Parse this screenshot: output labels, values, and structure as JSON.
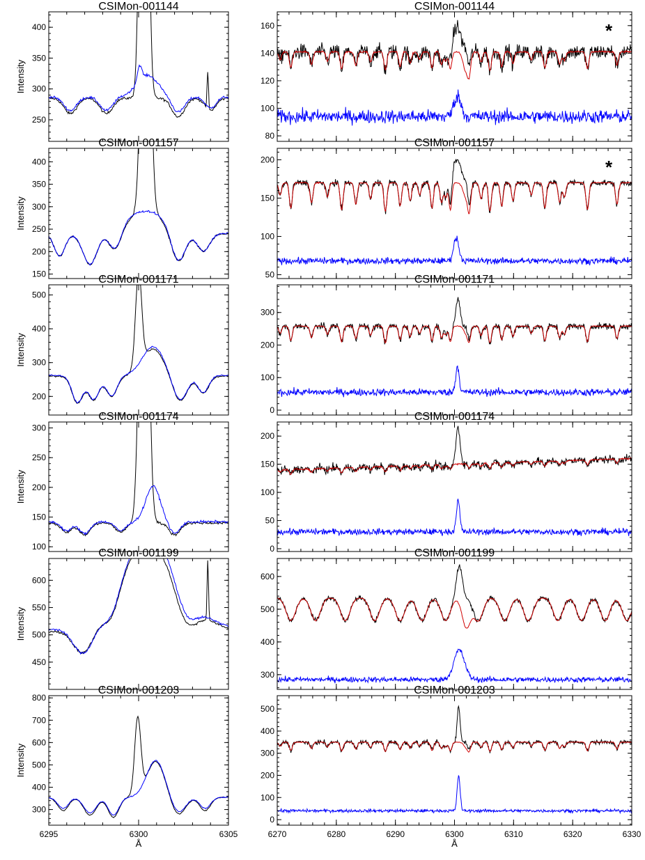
{
  "chart_data": [
    {
      "type": "line",
      "title": "CSIMon-001144",
      "ylabel": "Intensity",
      "xlabel": "",
      "xlim": [
        6295,
        6305
      ],
      "ylim": [
        215,
        425
      ],
      "yticks": [
        250,
        300,
        350,
        400
      ],
      "xticks": [
        6295,
        6300,
        6305
      ],
      "xtick_labels": [
        "",
        "",
        ""
      ],
      "series": [
        {
          "color": "#000000",
          "peaks": [
            [
              6300.3,
              0.19,
              1000
            ],
            [
              6303.85,
              0.04,
              60
            ]
          ],
          "continuum": 285,
          "dips": [
            [
              6296.2,
              0.35,
              25
            ],
            [
              6298.2,
              0.35,
              25
            ],
            [
              6302.2,
              0.35,
              30
            ],
            [
              6304.0,
              0.3,
              20
            ]
          ]
        },
        {
          "color": "#0000ff",
          "peaks": [
            [
              6300.5,
              0.6,
              35
            ],
            [
              6300.05,
              0.12,
              25
            ]
          ],
          "continuum": 287,
          "dips": [
            [
              6296.2,
              0.35,
              22
            ],
            [
              6298.2,
              0.35,
              22
            ],
            [
              6302.2,
              0.35,
              25
            ],
            [
              6304.0,
              0.3,
              18
            ]
          ]
        }
      ]
    },
    {
      "type": "line",
      "title": "CSIMon-001144",
      "ylabel": "",
      "xlabel": "",
      "xlim": [
        6270,
        6330
      ],
      "ylim": [
        76,
        170
      ],
      "yticks": [
        80,
        100,
        120,
        140,
        160
      ],
      "xticks": [
        6270,
        6280,
        6290,
        6300,
        6310,
        6320,
        6330
      ],
      "xtick_labels": [
        "",
        "",
        "",
        "",
        "",
        "",
        ""
      ],
      "marker": "*",
      "series": [
        {
          "color": "#000000",
          "continuum": 141,
          "peaks": [
            [
              6300.4,
              0.7,
              18
            ]
          ],
          "dips": "telluric",
          "depth": 14,
          "noise": 4
        },
        {
          "color": "#d00000",
          "continuum": 141,
          "peaks": [],
          "dips": "telluric",
          "depth": 14,
          "noise": 0.5,
          "extra_dip": [
            6302.0,
            0.5,
            15
          ]
        },
        {
          "color": "#0000ff",
          "continuum": 94,
          "peaks": [
            [
              6300.5,
              0.6,
              15
            ]
          ],
          "dips": "none",
          "depth": 0,
          "noise": 3.5
        }
      ]
    },
    {
      "type": "line",
      "title": "CSIMon-001157",
      "ylabel": "Intensity",
      "xlabel": "",
      "xlim": [
        6295,
        6305
      ],
      "ylim": [
        140,
        430
      ],
      "yticks": [
        150,
        200,
        250,
        300,
        350,
        400
      ],
      "xticks": [
        6295,
        6300,
        6305
      ],
      "xtick_labels": [
        "",
        "",
        ""
      ],
      "series": [
        {
          "color": "#000000",
          "peaks": [
            [
              6300.4,
              0.22,
              900
            ],
            [
              6300.4,
              1.2,
              45
            ]
          ],
          "continuum": 240,
          "dips": [
            [
              6295.6,
              0.3,
              50
            ],
            [
              6297.3,
              0.4,
              70
            ],
            [
              6298.7,
              0.35,
              50
            ],
            [
              6302.2,
              0.4,
              75
            ],
            [
              6303.6,
              0.35,
              40
            ]
          ]
        },
        {
          "color": "#0000ff",
          "peaks": [
            [
              6300.4,
              1.2,
              50
            ]
          ],
          "continuum": 240,
          "dips": [
            [
              6295.6,
              0.3,
              50
            ],
            [
              6297.3,
              0.4,
              70
            ],
            [
              6298.7,
              0.35,
              50
            ],
            [
              6302.2,
              0.4,
              75
            ],
            [
              6303.6,
              0.35,
              40
            ]
          ]
        }
      ]
    },
    {
      "type": "line",
      "title": "CSIMon-001157",
      "ylabel": "",
      "xlabel": "",
      "xlim": [
        6270,
        6330
      ],
      "ylim": [
        45,
        215
      ],
      "yticks": [
        50,
        100,
        150,
        200
      ],
      "xticks": [
        6270,
        6280,
        6290,
        6300,
        6310,
        6320,
        6330
      ],
      "xtick_labels": [
        "",
        "",
        "",
        "",
        "",
        "",
        ""
      ],
      "marker": "*",
      "series": [
        {
          "color": "#000000",
          "continuum": 170,
          "peaks": [
            [
              6300.4,
              0.7,
              30
            ]
          ],
          "dips": "telluric",
          "depth": 40,
          "noise": 3
        },
        {
          "color": "#d00000",
          "continuum": 170,
          "peaks": [],
          "dips": "telluric",
          "depth": 40,
          "noise": 0.5,
          "extra_dip": [
            6302.0,
            0.5,
            20
          ]
        },
        {
          "color": "#0000ff",
          "continuum": 68,
          "peaks": [
            [
              6300.3,
              0.45,
              30
            ]
          ],
          "dips": "none",
          "depth": 0,
          "noise": 3
        }
      ]
    },
    {
      "type": "line",
      "title": "CSIMon-001171",
      "ylabel": "Intensity",
      "xlabel": "",
      "xlim": [
        6295,
        6305
      ],
      "ylim": [
        145,
        530
      ],
      "yticks": [
        200,
        300,
        400,
        500
      ],
      "xticks": [
        6295,
        6300,
        6305
      ],
      "xtick_labels": [
        "",
        "",
        ""
      ],
      "series": [
        {
          "color": "#000000",
          "peaks": [
            [
              6300.0,
              0.17,
              280
            ],
            [
              6300.8,
              0.6,
              80
            ]
          ],
          "continuum": 260,
          "dips": [
            [
              6296.6,
              0.3,
              80
            ],
            [
              6297.5,
              0.3,
              70
            ],
            [
              6298.5,
              0.3,
              60
            ],
            [
              6302.3,
              0.4,
              75
            ],
            [
              6303.6,
              0.3,
              50
            ]
          ]
        },
        {
          "color": "#0000ff",
          "peaks": [
            [
              6300.8,
              0.6,
              85
            ]
          ],
          "continuum": 262,
          "dips": [
            [
              6296.6,
              0.3,
              80
            ],
            [
              6297.5,
              0.3,
              70
            ],
            [
              6298.5,
              0.3,
              60
            ],
            [
              6302.3,
              0.4,
              75
            ],
            [
              6303.6,
              0.3,
              50
            ]
          ]
        }
      ]
    },
    {
      "type": "line",
      "title": "CSIMon-001171",
      "ylabel": "",
      "xlabel": "",
      "xlim": [
        6270,
        6330
      ],
      "ylim": [
        -15,
        385
      ],
      "yticks": [
        0,
        100,
        200,
        300
      ],
      "xticks": [
        6270,
        6280,
        6290,
        6300,
        6310,
        6320,
        6330
      ],
      "xtick_labels": [
        "",
        "",
        "",
        "",
        "",
        "",
        ""
      ],
      "series": [
        {
          "color": "#000000",
          "continuum": 258,
          "peaks": [
            [
              6300.6,
              0.35,
              85
            ]
          ],
          "dips": "telluric",
          "depth": 55,
          "noise": 7
        },
        {
          "color": "#d00000",
          "continuum": 258,
          "peaks": [],
          "dips": "telluric",
          "depth": 55,
          "noise": 1,
          "extra_dip": [
            6302.0,
            0.4,
            25
          ]
        },
        {
          "color": "#0000ff",
          "continuum": 55,
          "peaks": [
            [
              6300.5,
              0.3,
              80
            ]
          ],
          "dips": "none",
          "depth": 0,
          "noise": 8
        }
      ]
    },
    {
      "type": "line",
      "title": "CSIMon-001174",
      "ylabel": "Intensity",
      "xlabel": "",
      "xlim": [
        6295,
        6305
      ],
      "ylim": [
        92,
        310
      ],
      "yticks": [
        100,
        150,
        200,
        250,
        300
      ],
      "xticks": [
        6295,
        6300,
        6305
      ],
      "xtick_labels": [
        "",
        "",
        ""
      ],
      "series": [
        {
          "color": "#000000",
          "peaks": [
            [
              6300.3,
              0.22,
              800
            ]
          ],
          "continuum": 140,
          "dips": [
            [
              6296.0,
              0.3,
              15
            ],
            [
              6297.0,
              0.3,
              20
            ],
            [
              6299.0,
              0.3,
              15
            ],
            [
              6302.0,
              0.3,
              20
            ]
          ]
        },
        {
          "color": "#0000ff",
          "peaks": [
            [
              6300.8,
              0.4,
              60
            ]
          ],
          "continuum": 142,
          "dips": [
            [
              6296.0,
              0.3,
              15
            ],
            [
              6297.0,
              0.3,
              20
            ],
            [
              6299.0,
              0.3,
              15
            ],
            [
              6302.0,
              0.3,
              20
            ]
          ]
        }
      ]
    },
    {
      "type": "line",
      "title": "CSIMon-001174",
      "ylabel": "",
      "xlabel": "",
      "xlim": [
        6270,
        6330
      ],
      "ylim": [
        -5,
        225
      ],
      "yticks": [
        0,
        50,
        100,
        150,
        200
      ],
      "xticks": [
        6270,
        6280,
        6290,
        6300,
        6310,
        6320,
        6330
      ],
      "xtick_labels": [
        "",
        "",
        "",
        "",
        "",
        "",
        ""
      ],
      "series": [
        {
          "color": "#000000",
          "continuum": 140,
          "peaks": [
            [
              6300.6,
              0.35,
              65
            ]
          ],
          "dips": "telluric",
          "depth": 10,
          "noise": 5,
          "trend": 20
        },
        {
          "color": "#d00000",
          "continuum": 140,
          "peaks": [],
          "dips": "telluric",
          "depth": 10,
          "noise": 1,
          "trend": 20
        },
        {
          "color": "#0000ff",
          "continuum": 30,
          "peaks": [
            [
              6300.6,
              0.3,
              55
            ]
          ],
          "dips": "none",
          "depth": 0,
          "noise": 4
        }
      ]
    },
    {
      "type": "line",
      "title": "CSIMon-001199",
      "ylabel": "Intensity",
      "xlabel": "",
      "xlim": [
        6295,
        6305
      ],
      "ylim": [
        400,
        640
      ],
      "yticks": [
        450,
        500,
        550,
        600
      ],
      "xticks": [
        6295,
        6300,
        6305
      ],
      "xtick_labels": [
        "",
        "",
        ""
      ],
      "series": [
        {
          "color": "#000000",
          "peaks": [
            [
              6300.5,
              1.8,
              160
            ],
            [
              6303.85,
              0.04,
              110
            ]
          ],
          "continuum": 505,
          "dips": [
            [
              6297.0,
              0.6,
              60
            ],
            [
              6298.5,
              0.5,
              55
            ],
            [
              6302.6,
              0.6,
              60
            ]
          ]
        },
        {
          "color": "#0000ff",
          "peaks": [
            [
              6300.6,
              1.7,
              170
            ]
          ],
          "continuum": 510,
          "dips": [
            [
              6297.0,
              0.6,
              60
            ],
            [
              6298.5,
              0.5,
              50
            ],
            [
              6302.6,
              0.6,
              55
            ]
          ]
        }
      ]
    },
    {
      "type": "line",
      "title": "CSIMon-001199",
      "ylabel": "",
      "xlabel": "",
      "xlim": [
        6270,
        6330
      ],
      "ylim": [
        255,
        655
      ],
      "yticks": [
        300,
        400,
        500,
        600
      ],
      "xticks": [
        6270,
        6280,
        6290,
        6300,
        6310,
        6320,
        6330
      ],
      "xtick_labels": [
        "",
        "",
        "",
        "",
        "",
        "",
        ""
      ],
      "series": [
        {
          "color": "#000000",
          "continuum": 535,
          "peaks": [
            [
              6300.8,
              0.5,
              100
            ]
          ],
          "dips": "broad",
          "depth": 70,
          "noise": 5
        },
        {
          "color": "#d00000",
          "continuum": 535,
          "peaks": [],
          "dips": "broad",
          "depth": 70,
          "noise": 1,
          "extra_dip": [
            6302.0,
            0.7,
            90
          ]
        },
        {
          "color": "#0000ff",
          "continuum": 285,
          "peaks": [
            [
              6300.8,
              0.9,
              90
            ]
          ],
          "dips": "none",
          "depth": 0,
          "noise": 6
        }
      ]
    },
    {
      "type": "line",
      "title": "CSIMon-001203",
      "ylabel": "Intensity",
      "xlabel": "Å",
      "xlim": [
        6295,
        6305
      ],
      "ylim": [
        230,
        810
      ],
      "yticks": [
        300,
        400,
        500,
        600,
        700,
        800
      ],
      "xticks": [
        6295,
        6300,
        6305
      ],
      "xtick_labels": [
        "6295",
        "6300",
        "6305"
      ],
      "series": [
        {
          "color": "#000000",
          "peaks": [
            [
              6299.95,
              0.17,
              340
            ],
            [
              6300.95,
              0.5,
              160
            ]
          ],
          "continuum": 355,
          "dips": [
            [
              6295.8,
              0.3,
              60
            ],
            [
              6297.3,
              0.35,
              80
            ],
            [
              6298.6,
              0.3,
              90
            ],
            [
              6302.2,
              0.4,
              80
            ],
            [
              6303.7,
              0.3,
              60
            ]
          ]
        },
        {
          "color": "#0000ff",
          "peaks": [
            [
              6300.95,
              0.5,
              165
            ]
          ],
          "continuum": 355,
          "dips": [
            [
              6295.8,
              0.3,
              50
            ],
            [
              6297.3,
              0.35,
              70
            ],
            [
              6298.6,
              0.3,
              80
            ],
            [
              6302.2,
              0.4,
              70
            ],
            [
              6303.7,
              0.3,
              50
            ]
          ]
        }
      ]
    },
    {
      "type": "line",
      "title": "CSIMon-001203",
      "ylabel": "",
      "xlabel": "Å",
      "xlim": [
        6270,
        6330
      ],
      "ylim": [
        -25,
        560
      ],
      "yticks": [
        0,
        100,
        200,
        300,
        400,
        500
      ],
      "xticks": [
        6270,
        6280,
        6290,
        6300,
        6310,
        6320,
        6330
      ],
      "xtick_labels": [
        "6270",
        "6280",
        "6290",
        "6300",
        "6310",
        "6320",
        "6330"
      ],
      "series": [
        {
          "color": "#000000",
          "continuum": 350,
          "peaks": [
            [
              6300.7,
              0.25,
              160
            ]
          ],
          "dips": "telluric",
          "depth": 45,
          "noise": 7
        },
        {
          "color": "#d00000",
          "continuum": 350,
          "peaks": [],
          "dips": "telluric",
          "depth": 45,
          "noise": 1,
          "extra_dip": [
            6302.0,
            0.4,
            25
          ]
        },
        {
          "color": "#0000ff",
          "continuum": 40,
          "peaks": [
            [
              6300.7,
              0.25,
              160
            ]
          ],
          "dips": "none",
          "depth": 0,
          "noise": 5
        }
      ]
    }
  ]
}
